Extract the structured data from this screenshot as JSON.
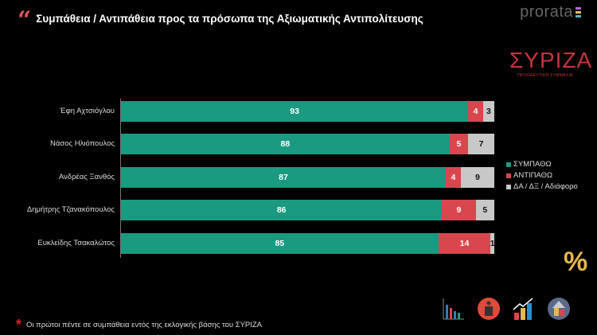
{
  "header": {
    "title": "Συμπάθεια / Αντιπάθεια προς τα πρόσωπα της Αξιωματικής Αντιπολίτευσης",
    "brand": "prorata",
    "logo_text": "ΣΥΡΙΖΑ",
    "logo_sub": "ΠΡΟΟΔΕΥΤΙΚΗ ΣΥΜΜΑΧΙΑ"
  },
  "chart_data": {
    "type": "bar",
    "orientation": "horizontal",
    "stacked": true,
    "title": "Συμπάθεια / Αντιπάθεια προς τα πρόσωπα της Αξιωματικής Αντιπολίτευσης",
    "categories": [
      "Έφη Αχτσιόγλου",
      "Νάσος Ηλιόπουλος",
      "Ανδρέας Ξανθός",
      "Δημήτρης Τζανακόπουλος",
      "Ευκλείδης Τσακαλώτος"
    ],
    "series": [
      {
        "name": "ΣΥΜΠΑΘΩ",
        "color": "#1a9a80",
        "values": [
          93,
          88,
          87,
          86,
          85
        ]
      },
      {
        "name": "ΑΝΤΙΠΑΘΩ",
        "color": "#d9474e",
        "values": [
          4,
          5,
          4,
          9,
          14
        ]
      },
      {
        "name": "ΔΑ / ΔΞ / Αδιάφορο",
        "color": "#c8c8c8",
        "values": [
          3,
          7,
          9,
          5,
          1
        ]
      }
    ],
    "xlim": [
      0,
      100
    ],
    "legend": "right"
  },
  "footer": {
    "note": "Οι πρώτοι πέντε σε συμπάθεια εντός της εκλογικής βάσης του ΣΥΡΙΖΑ",
    "percent_symbol": "%"
  }
}
